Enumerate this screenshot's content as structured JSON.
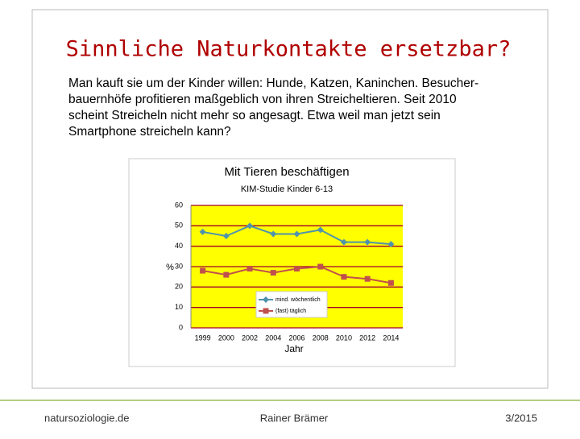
{
  "slide_title": "Sinnliche Naturkontakte ersetzbar?",
  "body_lines": [
    "Man kauft sie um der Kinder willen: Hunde, Katzen, Kaninchen. Besucher-",
    "bauernhöfe profitieren maßgeblich von ihren Streicheltieren. Seit 2010",
    "scheint Streicheln nicht mehr so angesagt. Etwa weil man jetzt sein",
    "Smartphone streicheln kann?"
  ],
  "footer": {
    "left": "natursoziologie.de",
    "center": "Rainer Brämer",
    "right": "3/2015"
  },
  "chart_data": {
    "type": "line",
    "title": "Mit Tieren beschäftigen",
    "subtitle": "KIM-Studie Kinder 6-13",
    "x_label": "Jahr",
    "y_label": "%",
    "categories": [
      "1999",
      "2000",
      "2002",
      "2004",
      "2006",
      "2008",
      "2010",
      "2012",
      "2014"
    ],
    "series": [
      {
        "name": "mind. wöchentlich",
        "color": "#4f93ad",
        "marker": "diamond",
        "values": [
          47,
          45,
          50,
          46,
          46,
          48,
          42,
          42,
          41
        ]
      },
      {
        "name": "(fast) täglich",
        "color": "#c0504d",
        "marker": "square",
        "values": [
          28,
          26,
          29,
          27,
          29,
          30,
          25,
          24,
          22
        ]
      }
    ],
    "ylim": [
      0,
      60
    ],
    "yticks": [
      0,
      10,
      20,
      30,
      40,
      50,
      60
    ],
    "grid": true,
    "plot_background": "#ffff00",
    "grid_color": "#a0002a"
  }
}
